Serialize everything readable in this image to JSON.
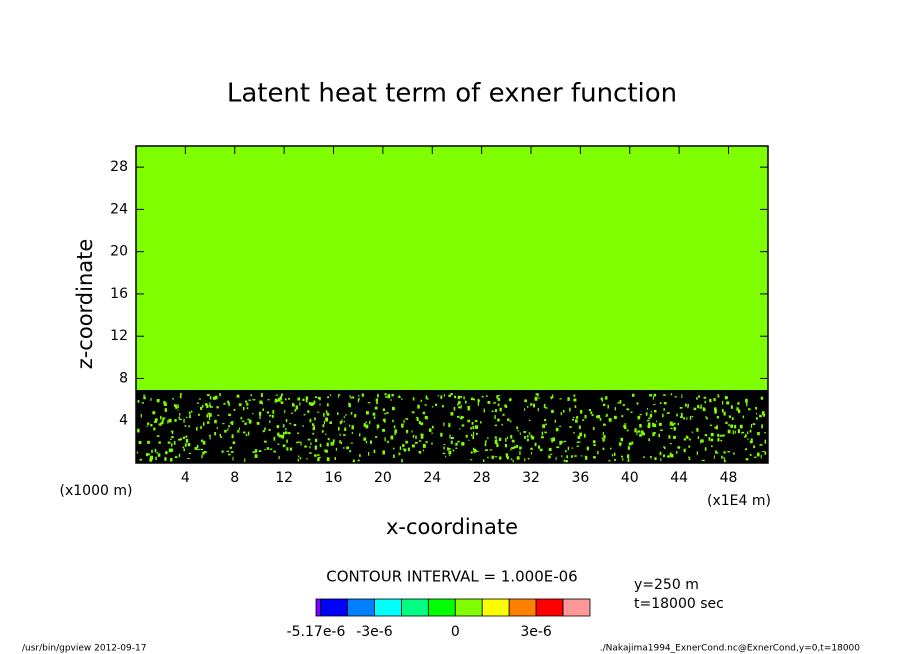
{
  "chart_data": {
    "type": "contour",
    "title": "Latent heat term of exner function",
    "xlabel": "x-coordinate",
    "ylabel": "z-coordinate",
    "x_unit_label": "(x1E4 m)",
    "y_unit_label": "(x1000 m)",
    "xlim": [
      0,
      51.2
    ],
    "xticks": [
      4,
      8,
      12,
      16,
      20,
      24,
      28,
      32,
      36,
      40,
      44,
      48
    ],
    "ylim": [
      0,
      30
    ],
    "yticks": [
      4,
      8,
      12,
      16,
      20,
      24,
      28
    ],
    "field_color": "#80ff00",
    "noise_color": "#000000",
    "contour_interval_label": "CONTOUR INTERVAL = 1.000E-06",
    "annotations": [
      "y=250 m",
      "t=18000 sec"
    ],
    "colorbar": {
      "levels": [
        -5.17e-06,
        -5e-06,
        -4e-06,
        -3e-06,
        -2e-06,
        -1e-06,
        0,
        1e-06,
        2e-06,
        3e-06,
        4e-06,
        5e-06
      ],
      "colors": [
        "#8000ff",
        "#0000ff",
        "#0080ff",
        "#00ffff",
        "#00ff80",
        "#00ff00",
        "#80ff00",
        "#ffff00",
        "#ff8000",
        "#ff0000",
        "#ff9999"
      ],
      "ticks": [
        {
          "value": -5.17e-06,
          "label": "-5.17e-6"
        },
        {
          "value": -3e-06,
          "label": "-3e-6"
        },
        0,
        {
          "value": 3e-06,
          "label": "3e-6"
        }
      ]
    },
    "footer_left": "/usr/bin/gpview   2012-09-17",
    "footer_right": "./Nakajima1994_ExnerCond.nc@ExnerCond,y=0,t=18000"
  }
}
